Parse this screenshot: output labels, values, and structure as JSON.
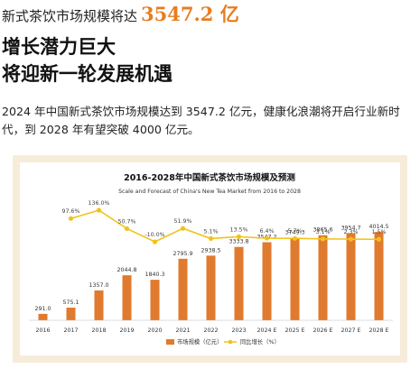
{
  "header": {
    "prefix": "新式茶饮市场规模将达",
    "highlight": "3547.2 亿",
    "subtitle_line1": "增长潜力巨大",
    "subtitle_line2": "将迎新一轮发展机遇"
  },
  "body_text": "2024 年中国新式茶饮市场规模达到 3547.2 亿元，健康化浪潮将开启行业新时代，到 2028 年有望突破 4000 亿元。",
  "colors": {
    "accent": "#e67e22",
    "bar": "#e07a2e",
    "line": "#f2c21a",
    "frame": "#f7ecda"
  },
  "chart_data": {
    "type": "bar",
    "title": "2016-2028年中国新式茶饮市场规模及预测",
    "subtitle": "Scale and Forecast of China's New Tea Market from 2016 to 2028",
    "categories": [
      "2016",
      "2017",
      "2018",
      "2019",
      "2020",
      "2021",
      "2022",
      "2023",
      "2024 E",
      "2025 E",
      "2026 E",
      "2027 E",
      "2028 E"
    ],
    "series": [
      {
        "name": "市场规模（亿元）",
        "type": "bar",
        "values": [
          291.0,
          575.1,
          1357.0,
          2044.8,
          1840.3,
          2795.9,
          2938.5,
          3333.8,
          3547.2,
          3749.3,
          3865.6,
          3954.7,
          4014.5
        ],
        "labels": [
          "291.0",
          "575.1",
          "1357.0",
          "2044.8",
          "1840.3",
          "2795.9",
          "2938.5",
          "3333.8",
          "3547.2",
          "3749.3",
          "3865.6",
          "3954.7",
          "4014.5"
        ]
      },
      {
        "name": "同比增长（%）",
        "type": "line",
        "values": [
          null,
          97.6,
          136.0,
          50.7,
          -10.0,
          51.9,
          5.1,
          13.5,
          6.4,
          5.7,
          3.1,
          2.3,
          1.5
        ],
        "labels": [
          "",
          "97.6%",
          "136.0%",
          "50.7%",
          "-10.0%",
          "51.9%",
          "5.1%",
          "13.5%",
          "6.4%",
          "5.7%",
          "3.1%",
          "2.3%",
          "1.5%"
        ]
      }
    ],
    "legend": "bottom-center",
    "grid": false
  }
}
